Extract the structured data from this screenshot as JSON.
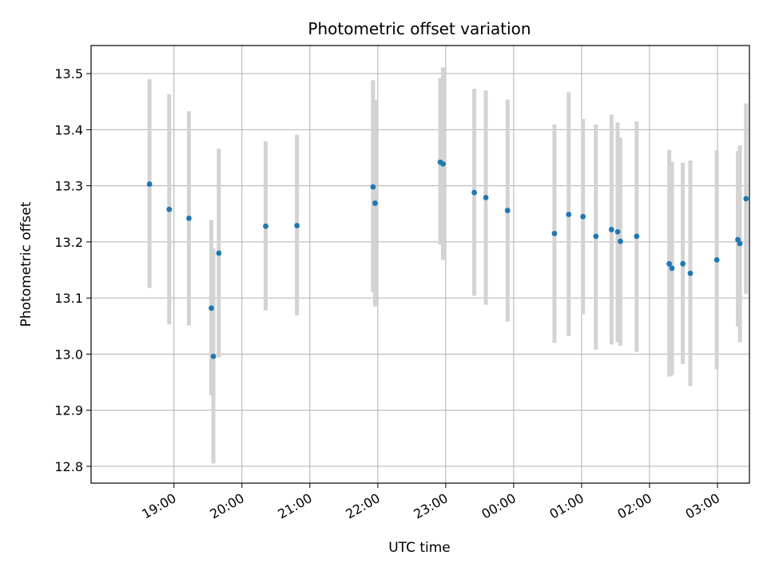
{
  "chart_data": {
    "type": "scatter",
    "title": "Photometric offset variation",
    "xlabel": "UTC time",
    "ylabel": "Photometric offset",
    "grid": true,
    "x_unit": "hours",
    "xlim": [
      17.78,
      27.47
    ],
    "ylim": [
      12.77,
      13.55
    ],
    "x_ticks": [
      {
        "value": 19,
        "label": "19:00"
      },
      {
        "value": 20,
        "label": "20:00"
      },
      {
        "value": 21,
        "label": "21:00"
      },
      {
        "value": 22,
        "label": "22:00"
      },
      {
        "value": 23,
        "label": "23:00"
      },
      {
        "value": 24,
        "label": "00:00"
      },
      {
        "value": 25,
        "label": "01:00"
      },
      {
        "value": 26,
        "label": "02:00"
      },
      {
        "value": 27,
        "label": "03:00"
      }
    ],
    "y_ticks": [
      {
        "value": 12.8,
        "label": "12.8"
      },
      {
        "value": 12.9,
        "label": "12.9"
      },
      {
        "value": 13.0,
        "label": "13.0"
      },
      {
        "value": 13.1,
        "label": "13.1"
      },
      {
        "value": 13.2,
        "label": "13.2"
      },
      {
        "value": 13.3,
        "label": "13.3"
      },
      {
        "value": 13.4,
        "label": "13.4"
      },
      {
        "value": 13.5,
        "label": "13.5"
      }
    ],
    "marker_color": "#1f77b4",
    "errorbar_color": "#d3d3d3",
    "points": [
      {
        "x": 18.64,
        "y": 13.303,
        "low": 13.118,
        "high": 13.49
      },
      {
        "x": 18.93,
        "y": 13.258,
        "low": 13.053,
        "high": 13.463
      },
      {
        "x": 19.22,
        "y": 13.242,
        "low": 13.051,
        "high": 13.433
      },
      {
        "x": 19.55,
        "y": 13.082,
        "low": 12.927,
        "high": 13.239
      },
      {
        "x": 19.58,
        "y": 12.996,
        "low": 12.805,
        "high": 13.188
      },
      {
        "x": 19.66,
        "y": 13.18,
        "low": 12.994,
        "high": 13.366
      },
      {
        "x": 20.35,
        "y": 13.228,
        "low": 13.078,
        "high": 13.379
      },
      {
        "x": 20.81,
        "y": 13.229,
        "low": 13.069,
        "high": 13.391
      },
      {
        "x": 21.93,
        "y": 13.298,
        "low": 13.11,
        "high": 13.488
      },
      {
        "x": 21.96,
        "y": 13.269,
        "low": 13.085,
        "high": 13.453
      },
      {
        "x": 22.92,
        "y": 13.342,
        "low": 13.195,
        "high": 13.492
      },
      {
        "x": 22.96,
        "y": 13.339,
        "low": 13.168,
        "high": 13.511
      },
      {
        "x": 23.42,
        "y": 13.288,
        "low": 13.104,
        "high": 13.473
      },
      {
        "x": 23.59,
        "y": 13.279,
        "low": 13.088,
        "high": 13.47
      },
      {
        "x": 23.91,
        "y": 13.256,
        "low": 13.058,
        "high": 13.454
      },
      {
        "x": 24.6,
        "y": 13.215,
        "low": 13.02,
        "high": 13.409
      },
      {
        "x": 24.81,
        "y": 13.249,
        "low": 13.032,
        "high": 13.467
      },
      {
        "x": 25.02,
        "y": 13.245,
        "low": 13.071,
        "high": 13.419
      },
      {
        "x": 25.21,
        "y": 13.21,
        "low": 13.008,
        "high": 13.409
      },
      {
        "x": 25.44,
        "y": 13.222,
        "low": 13.017,
        "high": 13.427
      },
      {
        "x": 25.53,
        "y": 13.218,
        "low": 13.021,
        "high": 13.413
      },
      {
        "x": 25.57,
        "y": 13.201,
        "low": 13.015,
        "high": 13.386
      },
      {
        "x": 25.81,
        "y": 13.21,
        "low": 13.004,
        "high": 13.415
      },
      {
        "x": 26.29,
        "y": 13.161,
        "low": 12.96,
        "high": 13.364
      },
      {
        "x": 26.33,
        "y": 13.153,
        "low": 12.962,
        "high": 13.343
      },
      {
        "x": 26.49,
        "y": 13.161,
        "low": 12.982,
        "high": 13.341
      },
      {
        "x": 26.6,
        "y": 13.144,
        "low": 12.943,
        "high": 13.345
      },
      {
        "x": 26.99,
        "y": 13.168,
        "low": 12.973,
        "high": 13.363
      },
      {
        "x": 27.3,
        "y": 13.204,
        "low": 13.049,
        "high": 13.362
      },
      {
        "x": 27.33,
        "y": 13.197,
        "low": 13.021,
        "high": 13.372
      },
      {
        "x": 27.42,
        "y": 13.277,
        "low": 13.107,
        "high": 13.447
      }
    ]
  }
}
